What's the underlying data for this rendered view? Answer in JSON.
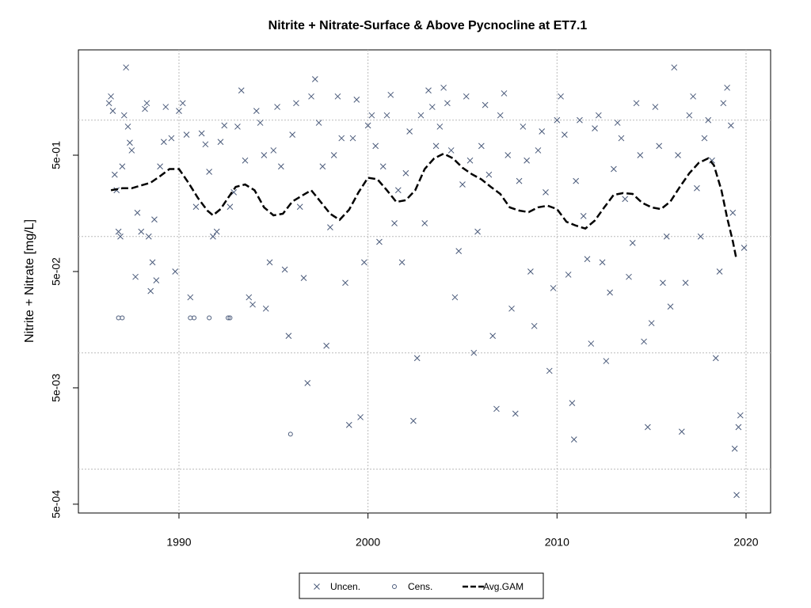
{
  "chart_data": {
    "type": "scatter",
    "title": "Nitrite + Nitrate-Surface & Above Pycnocline at ET7.1",
    "y_label": "Nitrite + Nitrate [mg/L]",
    "log_y": true,
    "grid": true,
    "legend": "bottom",
    "xlim": [
      1984.68,
      2021.3
    ],
    "ylim": [
      0.00042,
      4.02
    ],
    "xticks": [
      1990,
      2000,
      2010,
      2020
    ],
    "yticks": [
      {
        "value": 0.5,
        "label": "5e-01"
      },
      {
        "value": 0.05,
        "label": "5e-02"
      },
      {
        "value": 0.005,
        "label": "5e-03"
      },
      {
        "value": 0.0005,
        "label": "5e-04"
      }
    ],
    "ygrid": [
      1,
      0.1,
      0.01,
      0.001
    ],
    "series": [
      {
        "name": "Uncen.",
        "marker": "x",
        "color": "#4a5a7a",
        "x": [
          1986.3,
          1986.4,
          1986.5,
          1986.6,
          1986.7,
          1986.8,
          1986.9,
          1987.0,
          1987.1,
          1987.2,
          1987.3,
          1987.4,
          1987.5,
          1987.7,
          1987.8,
          1988.0,
          1988.2,
          1988.3,
          1988.4,
          1988.5,
          1988.6,
          1988.7,
          1988.8,
          1989.0,
          1989.2,
          1989.3,
          1989.6,
          1989.8,
          1990.0,
          1990.2,
          1990.4,
          1990.6,
          1990.9,
          1991.2,
          1991.4,
          1991.6,
          1991.8,
          1992.0,
          1992.2,
          1992.4,
          1992.7,
          1992.9,
          1993.1,
          1993.3,
          1993.5,
          1993.7,
          1993.9,
          1994.1,
          1994.3,
          1994.5,
          1994.6,
          1994.8,
          1995.0,
          1995.2,
          1995.4,
          1995.6,
          1995.8,
          1996.0,
          1996.2,
          1996.4,
          1996.6,
          1996.8,
          1997.0,
          1997.2,
          1997.4,
          1997.6,
          1997.8,
          1998.0,
          1998.2,
          1998.4,
          1998.6,
          1998.8,
          1999.0,
          1999.2,
          1999.4,
          1999.6,
          1999.8,
          2000.0,
          2000.2,
          2000.4,
          2000.6,
          2000.8,
          2001.0,
          2001.2,
          2001.4,
          2001.6,
          2001.8,
          2002.0,
          2002.2,
          2002.4,
          2002.6,
          2002.8,
          2003.0,
          2003.2,
          2003.4,
          2003.6,
          2003.8,
          2004.0,
          2004.2,
          2004.4,
          2004.6,
          2004.8,
          2005.0,
          2005.2,
          2005.4,
          2005.6,
          2005.8,
          2006.0,
          2006.2,
          2006.4,
          2006.6,
          2006.8,
          2007.0,
          2007.2,
          2007.4,
          2007.6,
          2007.8,
          2008.0,
          2008.2,
          2008.4,
          2008.6,
          2008.8,
          2009.0,
          2009.2,
          2009.4,
          2009.6,
          2009.8,
          2010.0,
          2010.2,
          2010.4,
          2010.6,
          2010.8,
          2010.9,
          2011.0,
          2011.2,
          2011.4,
          2011.6,
          2011.8,
          2012.0,
          2012.2,
          2012.4,
          2012.6,
          2012.8,
          2013.0,
          2013.2,
          2013.4,
          2013.6,
          2013.8,
          2014.0,
          2014.2,
          2014.4,
          2014.6,
          2014.8,
          2015.0,
          2015.2,
          2015.4,
          2015.6,
          2015.8,
          2016.0,
          2016.2,
          2016.4,
          2016.6,
          2016.8,
          2017.0,
          2017.2,
          2017.4,
          2017.6,
          2017.8,
          2018.0,
          2018.2,
          2018.4,
          2018.6,
          2018.8,
          2019.0,
          2019.2,
          2019.3,
          2019.4,
          2019.5,
          2019.6,
          2019.7,
          2019.9
        ],
        "values": [
          1.4,
          1.6,
          1.2,
          0.34,
          0.25,
          0.11,
          0.1,
          0.4,
          1.1,
          2.84,
          0.88,
          0.64,
          0.55,
          0.045,
          0.16,
          0.11,
          1.25,
          1.4,
          0.1,
          0.034,
          0.06,
          0.14,
          0.042,
          0.4,
          0.65,
          1.3,
          0.7,
          0.05,
          1.2,
          1.4,
          0.75,
          0.03,
          0.18,
          0.77,
          0.62,
          0.36,
          0.1,
          0.11,
          0.65,
          0.9,
          0.18,
          0.24,
          0.88,
          1.8,
          0.45,
          0.03,
          0.026,
          1.2,
          0.95,
          0.5,
          0.024,
          0.06,
          0.55,
          1.3,
          0.4,
          0.052,
          0.014,
          0.75,
          1.4,
          0.18,
          0.044,
          0.0055,
          1.6,
          2.25,
          0.95,
          0.4,
          0.0115,
          0.12,
          0.5,
          1.6,
          0.7,
          0.04,
          0.0024,
          0.7,
          1.5,
          0.0028,
          0.06,
          0.9,
          1.1,
          0.6,
          0.09,
          0.4,
          1.1,
          1.65,
          0.13,
          0.25,
          0.06,
          0.35,
          0.8,
          0.0026,
          0.009,
          1.1,
          0.13,
          1.8,
          1.3,
          0.6,
          0.88,
          1.9,
          1.4,
          0.55,
          0.03,
          0.075,
          0.28,
          1.6,
          0.45,
          0.01,
          0.11,
          0.6,
          1.35,
          0.34,
          0.014,
          0.0033,
          1.1,
          1.7,
          0.5,
          0.024,
          0.003,
          0.3,
          0.88,
          0.45,
          0.05,
          0.017,
          0.55,
          0.8,
          0.24,
          0.007,
          0.036,
          1.0,
          1.6,
          0.75,
          0.047,
          0.0037,
          0.0018,
          0.3,
          1.0,
          0.15,
          0.064,
          0.012,
          0.85,
          1.1,
          0.06,
          0.0085,
          0.033,
          0.38,
          0.95,
          0.7,
          0.21,
          0.045,
          0.088,
          1.4,
          0.5,
          0.0125,
          0.0023,
          0.018,
          1.3,
          0.6,
          0.04,
          0.1,
          0.025,
          2.84,
          0.5,
          0.0021,
          0.04,
          1.1,
          1.6,
          0.26,
          0.1,
          0.7,
          1.0,
          0.45,
          0.009,
          0.05,
          1.4,
          1.9,
          0.9,
          0.16,
          0.0015,
          0.0006,
          0.0023,
          0.0029,
          0.08
        ]
      },
      {
        "name": "Cens.",
        "marker": "circle",
        "color": "#4a5a7a",
        "x": [
          1986.8,
          1987.0,
          1990.6,
          1990.8,
          1991.6,
          1992.6,
          1992.7,
          1995.9
        ],
        "values": [
          0.02,
          0.02,
          0.02,
          0.02,
          0.02,
          0.02,
          0.02,
          0.002
        ]
      },
      {
        "name": "Avg.GAM",
        "marker": "dashed-line",
        "color": "#000000",
        "x": [
          1986.4,
          1987,
          1987.5,
          1988,
          1988.5,
          1989,
          1989.5,
          1990,
          1990.5,
          1991,
          1991.5,
          1991.8,
          1992.2,
          1992.6,
          1993,
          1993.5,
          1994,
          1994.5,
          1995,
          1995.5,
          1996,
          1996.5,
          1997,
          1997.5,
          1998,
          1998.5,
          1999,
          1999.5,
          2000,
          2000.5,
          2001,
          2001.5,
          2002,
          2002.5,
          2003,
          2003.5,
          2004,
          2004.5,
          2005,
          2005.5,
          2006,
          2006.5,
          2007,
          2007.5,
          2008,
          2008.5,
          2009,
          2009.5,
          2010,
          2010.5,
          2011,
          2011.5,
          2012,
          2012.5,
          2013,
          2013.5,
          2014,
          2014.5,
          2015,
          2015.5,
          2016,
          2016.5,
          2017,
          2017.5,
          2018,
          2018.3,
          2018.7,
          2019,
          2019.3,
          2019.5
        ],
        "values": [
          0.25,
          0.26,
          0.26,
          0.275,
          0.29,
          0.33,
          0.38,
          0.38,
          0.29,
          0.215,
          0.167,
          0.152,
          0.172,
          0.215,
          0.267,
          0.28,
          0.25,
          0.178,
          0.152,
          0.157,
          0.2,
          0.224,
          0.25,
          0.198,
          0.157,
          0.139,
          0.17,
          0.24,
          0.32,
          0.31,
          0.25,
          0.198,
          0.205,
          0.25,
          0.38,
          0.47,
          0.515,
          0.47,
          0.39,
          0.343,
          0.31,
          0.267,
          0.232,
          0.178,
          0.167,
          0.162,
          0.178,
          0.184,
          0.172,
          0.134,
          0.124,
          0.117,
          0.137,
          0.178,
          0.228,
          0.236,
          0.232,
          0.195,
          0.178,
          0.172,
          0.2,
          0.267,
          0.35,
          0.43,
          0.47,
          0.41,
          0.25,
          0.145,
          0.091,
          0.063
        ]
      }
    ]
  }
}
